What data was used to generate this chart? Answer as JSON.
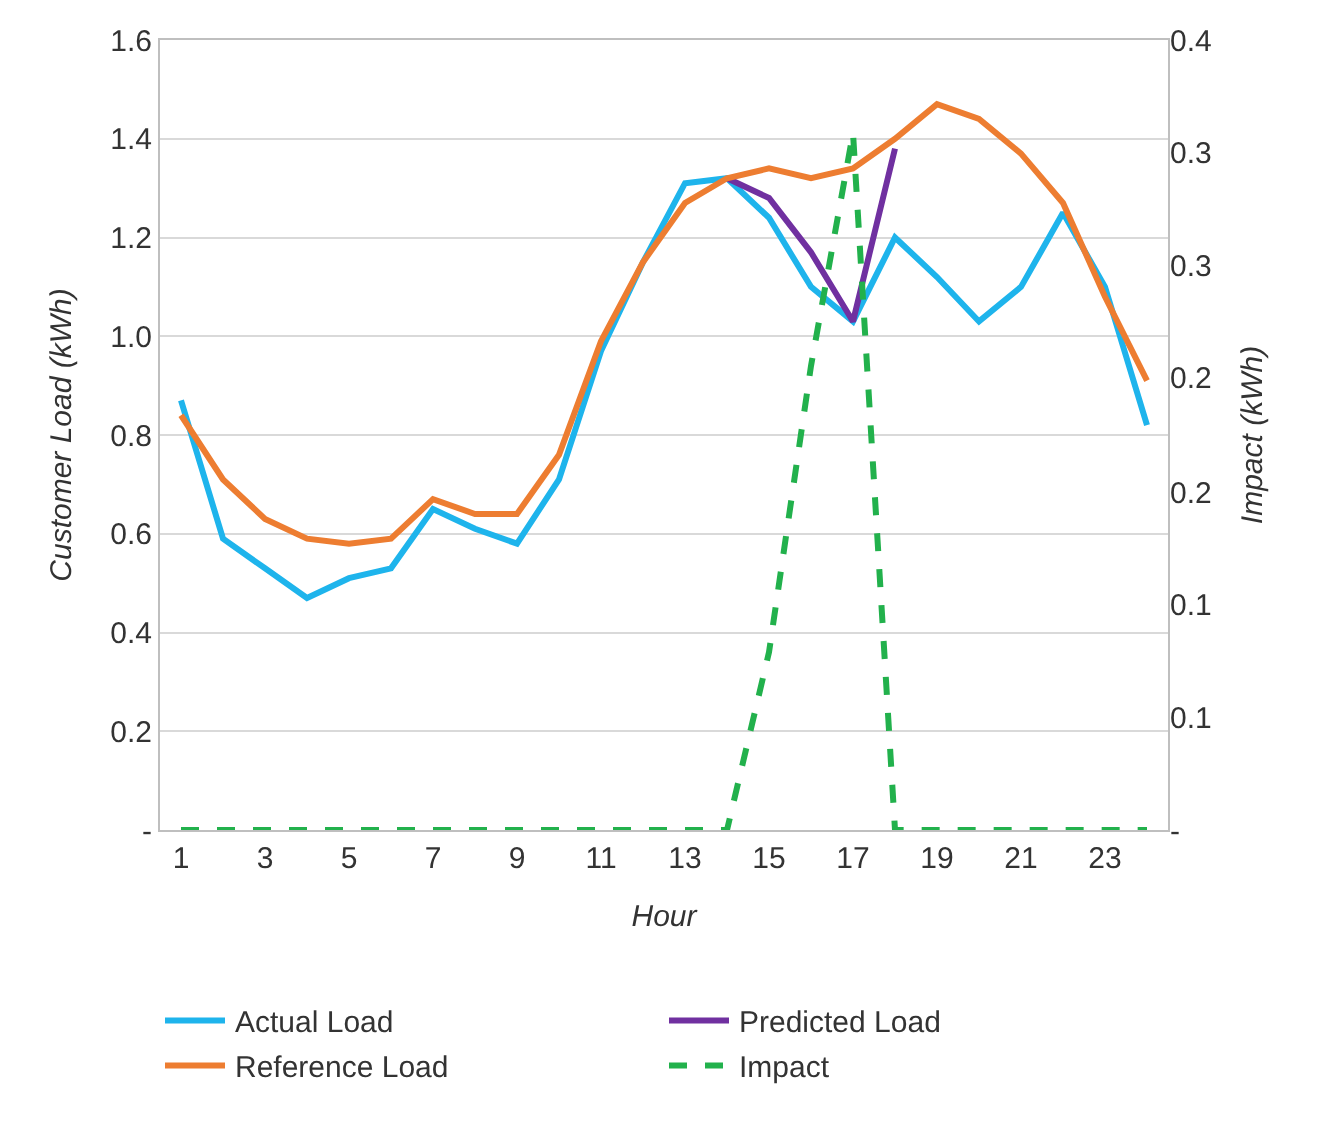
{
  "chart_data": {
    "type": "line",
    "xlabel": "Hour",
    "ylabel": "Customer Load (kWh)",
    "y2label": "Impact (kWh)",
    "x": [
      1,
      2,
      3,
      4,
      5,
      6,
      7,
      8,
      9,
      10,
      11,
      12,
      13,
      14,
      15,
      16,
      17,
      18,
      19,
      20,
      21,
      22,
      23,
      24
    ],
    "xlim": [
      0.5,
      24.5
    ],
    "xticks": [
      1,
      3,
      5,
      7,
      9,
      11,
      13,
      15,
      17,
      19,
      21,
      23
    ],
    "ylim": [
      0,
      1.6
    ],
    "yticks": [
      {
        "value": 0,
        "label": "-"
      },
      0.2,
      0.4,
      0.6,
      0.8,
      {
        "value": 1,
        "label": "1.0"
      },
      1.2,
      1.4,
      1.6
    ],
    "y2lim": [
      0,
      0.4
    ],
    "y2ticks": [
      {
        "value": 0,
        "label": "-"
      },
      {
        "value": 0.057,
        "label": "0.1"
      },
      {
        "value": 0.114,
        "label": "0.1"
      },
      {
        "value": 0.171,
        "label": "0.2"
      },
      {
        "value": 0.229,
        "label": "0.2"
      },
      {
        "value": 0.286,
        "label": "0.3"
      },
      {
        "value": 0.343,
        "label": "0.3"
      },
      0.4
    ],
    "grid": "y",
    "legend": "bottom",
    "marker": "none",
    "series": [
      {
        "name": "Actual Load",
        "color": "#1eb4ec",
        "values": [
          0.87,
          0.59,
          0.53,
          0.47,
          0.51,
          0.53,
          0.65,
          0.61,
          0.58,
          0.71,
          0.97,
          1.15,
          1.31,
          1.32,
          1.24,
          1.1,
          1.03,
          1.2,
          1.12,
          1.03,
          1.1,
          1.25,
          1.1,
          0.82
        ]
      },
      {
        "name": "Predicted Load",
        "color": "#7030a0",
        "values": [
          null,
          null,
          null,
          null,
          null,
          null,
          null,
          null,
          null,
          null,
          null,
          null,
          null,
          1.32,
          1.28,
          1.17,
          1.03,
          1.38,
          null,
          null,
          null,
          null,
          null,
          null
        ]
      },
      {
        "name": "Reference Load",
        "color": "#ed7d31",
        "values": [
          0.84,
          0.71,
          0.63,
          0.59,
          0.58,
          0.59,
          0.67,
          0.64,
          0.64,
          0.76,
          0.99,
          1.15,
          1.27,
          1.32,
          1.34,
          1.32,
          1.34,
          1.4,
          1.47,
          1.44,
          1.37,
          1.27,
          1.08,
          0.91
        ]
      },
      {
        "name": "Impact",
        "color": "#22b14c",
        "axis": "y2",
        "line_style": "dashed",
        "values": [
          0,
          0,
          0,
          0,
          0,
          0,
          0,
          0,
          0,
          0,
          0,
          0,
          0,
          0,
          0.09,
          0.235,
          0.353,
          0,
          0,
          0,
          0,
          0,
          0,
          0
        ]
      }
    ]
  }
}
